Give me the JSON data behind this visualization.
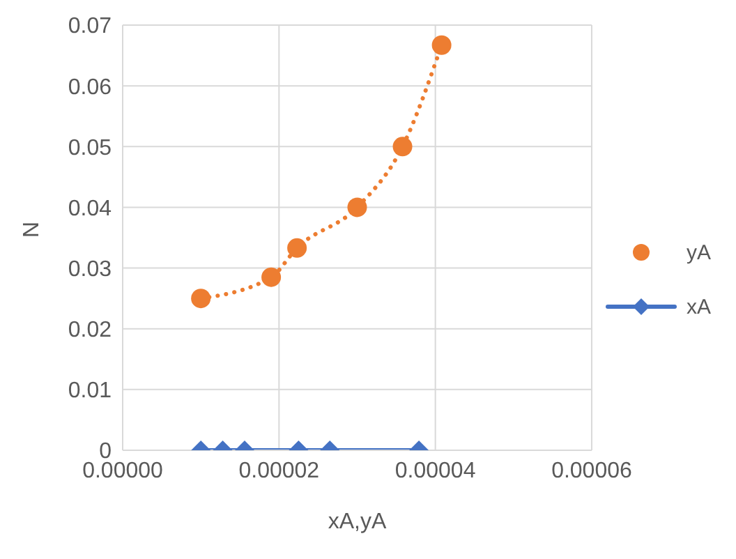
{
  "chart_data": {
    "type": "scatter",
    "xlabel": "xA,yA",
    "ylabel": "N",
    "xlim": [
      0,
      6e-05
    ],
    "xticks": [
      {
        "value": 0,
        "label": "0.00000"
      },
      {
        "value": 2e-05,
        "label": "0.00002"
      },
      {
        "value": 4e-05,
        "label": "0.00004"
      },
      {
        "value": 6e-05,
        "label": "0.00006"
      }
    ],
    "ylim": [
      0,
      0.07
    ],
    "yticks": [
      0,
      0.01,
      0.02,
      0.03,
      0.04,
      0.05,
      0.06,
      0.07
    ],
    "grid": true,
    "legend": "right",
    "series": [
      {
        "name": "yA",
        "marker": "circle",
        "color": "#ed7d31",
        "x": [
          1e-05,
          1.9e-05,
          2.23e-05,
          3e-05,
          3.58e-05,
          4.08e-05
        ],
        "values": [
          0.025,
          0.0285,
          0.0333,
          0.04,
          0.05,
          0.0667
        ]
      },
      {
        "type": "line",
        "marker": "none",
        "line_style": "dotted",
        "color": "#ed7d31",
        "x": [
          1e-05,
          1.9e-05,
          2.23e-05,
          3e-05,
          3.58e-05,
          4.08e-05
        ],
        "values": [
          0.025,
          0.0285,
          0.0333,
          0.04,
          0.05,
          0.0667
        ]
      },
      {
        "name": "xA",
        "type": "line",
        "marker": "diamond",
        "line_style": "solid",
        "color": "#4472c4",
        "x": [
          1e-05,
          1.28e-05,
          1.56e-05,
          2.25e-05,
          2.65e-05,
          3.79e-05
        ],
        "values": [
          0,
          0,
          0,
          0,
          0,
          0
        ]
      }
    ]
  }
}
